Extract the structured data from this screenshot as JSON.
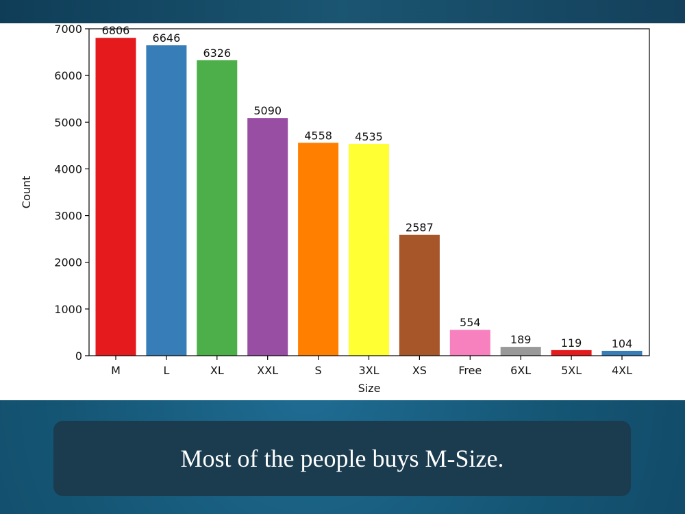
{
  "caption": "Most of the people buys M-Size.",
  "chart_data": {
    "type": "bar",
    "categories": [
      "M",
      "L",
      "XL",
      "XXL",
      "S",
      "3XL",
      "XS",
      "Free",
      "6XL",
      "5XL",
      "4XL"
    ],
    "values": [
      6806,
      6646,
      6326,
      5090,
      4558,
      4535,
      2587,
      554,
      189,
      119,
      104
    ],
    "colors": [
      "#e41a1c",
      "#377eb8",
      "#4daf4a",
      "#984ea3",
      "#ff7f00",
      "#ffff33",
      "#a65628",
      "#f781bf",
      "#999999",
      "#e41a1c",
      "#377eb8"
    ],
    "xlabel": "Size",
    "ylabel": "Count",
    "ylim": [
      0,
      7000
    ],
    "yticks": [
      0,
      1000,
      2000,
      3000,
      4000,
      5000,
      6000,
      7000
    ],
    "data_labels": true,
    "grid": false
  }
}
